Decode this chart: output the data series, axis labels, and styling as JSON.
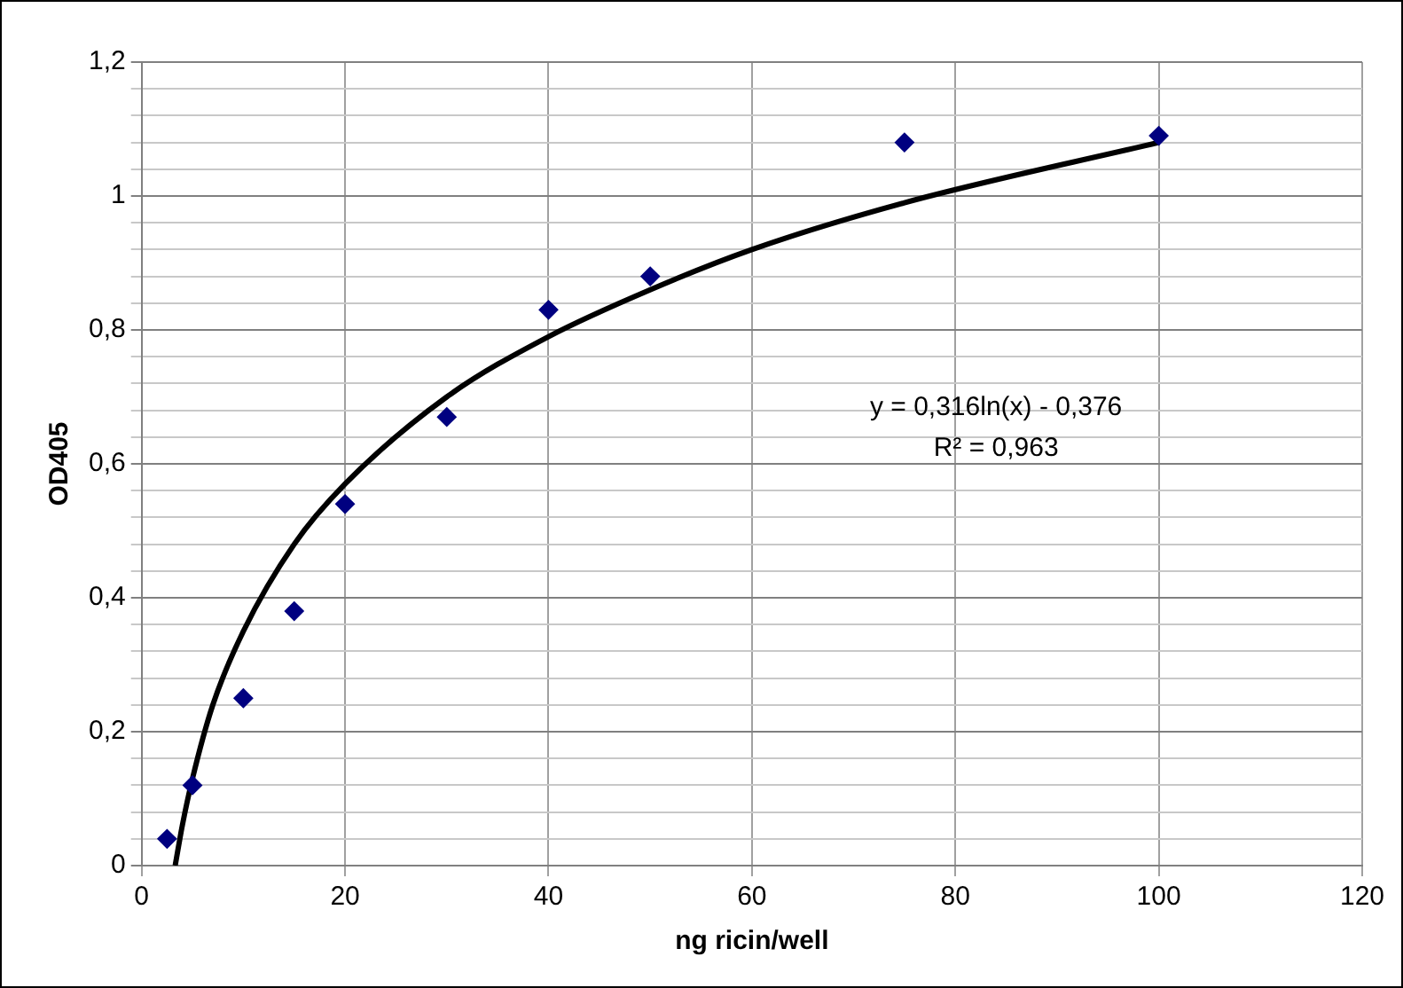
{
  "chart_data": {
    "type": "scatter",
    "xlabel": "ng ricin/well",
    "ylabel": "OD405",
    "series": [
      {
        "color": "#000080",
        "marker": "diamond",
        "x": [
          2.5,
          5,
          10,
          15,
          20,
          30,
          40,
          50,
          75,
          100
        ],
        "values": [
          0.04,
          0.12,
          0.25,
          0.38,
          0.54,
          0.67,
          0.83,
          0.88,
          1.08,
          1.09
        ]
      },
      {
        "type": "line",
        "color": "#000000",
        "marker": "none",
        "line_style": "solid",
        "x": [
          3.3,
          4,
          5,
          7,
          10,
          15,
          20,
          30,
          40,
          50,
          60,
          75,
          100
        ],
        "values": [
          0,
          0.06,
          0.13,
          0.24,
          0.35,
          0.48,
          0.57,
          0.7,
          0.79,
          0.86,
          0.92,
          0.99,
          1.08
        ]
      }
    ],
    "annotations": [
      "y = 0,316ln(x) - 0,376",
      "R² = 0,963"
    ],
    "xlim": [
      0,
      120
    ],
    "xticks": [
      0,
      20,
      40,
      60,
      80,
      100,
      120
    ],
    "ylim": [
      0,
      1.2
    ],
    "yticks": [
      {
        "value": 0,
        "label": "0"
      },
      {
        "value": 0.04,
        "label": null
      },
      {
        "value": 0.08,
        "label": null
      },
      {
        "value": 0.12,
        "label": null
      },
      {
        "value": 0.16,
        "label": null
      },
      {
        "value": 0.2,
        "label": "0,2"
      },
      {
        "value": 0.24,
        "label": null
      },
      {
        "value": 0.28,
        "label": null
      },
      {
        "value": 0.32,
        "label": null
      },
      {
        "value": 0.36,
        "label": null
      },
      {
        "value": 0.4,
        "label": "0,4"
      },
      {
        "value": 0.44,
        "label": null
      },
      {
        "value": 0.48,
        "label": null
      },
      {
        "value": 0.52,
        "label": null
      },
      {
        "value": 0.56,
        "label": null
      },
      {
        "value": 0.6,
        "label": "0,6"
      },
      {
        "value": 0.64,
        "label": null
      },
      {
        "value": 0.68,
        "label": null
      },
      {
        "value": 0.72,
        "label": null
      },
      {
        "value": 0.76,
        "label": null
      },
      {
        "value": 0.8,
        "label": "0,8"
      },
      {
        "value": 0.84,
        "label": null
      },
      {
        "value": 0.88,
        "label": null
      },
      {
        "value": 0.92,
        "label": null
      },
      {
        "value": 0.96,
        "label": null
      },
      {
        "value": 1,
        "label": "1"
      },
      {
        "value": 1.04,
        "label": null
      },
      {
        "value": 1.08,
        "label": null
      },
      {
        "value": 1.12,
        "label": null
      },
      {
        "value": 1.16,
        "label": null
      },
      {
        "value": 1.2,
        "label": "1,2"
      }
    ],
    "grid": true,
    "legend": false
  }
}
